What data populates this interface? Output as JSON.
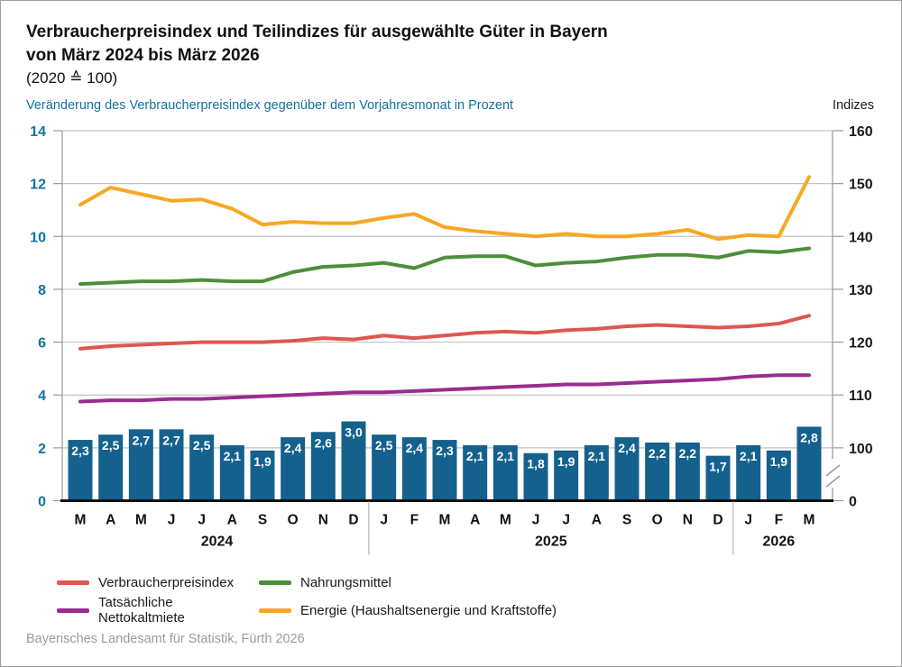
{
  "title": {
    "line1": "Verbraucherpreisindex und Teilindizes für ausgewählte Güter in Bayern",
    "line2": "von März 2024 bis März 2026",
    "line3": "(2020 ≙ 100)"
  },
  "subtitle_left": "Veränderung des Verbraucherpreisindex gegenüber dem Vorjahresmonat in Prozent",
  "subtitle_right": "Indizes",
  "footer": "Bayerisches Landesamt für Statistik, Fürth 2026",
  "colors": {
    "bar": "#14618e",
    "vpi_red": "#dd5750",
    "nahrungsmittel_green": "#4e8e3a",
    "miete_purple": "#9a2c90",
    "energie_orange": "#f6a823",
    "axis_text_blue": "#1272a3",
    "gridline": "#c3c3c3",
    "axis_line": "#9a9a9a",
    "bottom_axis": "#111111"
  },
  "chart_data": {
    "type": "bar",
    "subtype": "combo bar + 4 line series",
    "title": "Verbraucherpreisindex und Teilindizes für ausgewählte Güter in Bayern von März 2024 bis März 2026 (2020 ≙ 100)",
    "categories": [
      "M",
      "A",
      "M",
      "J",
      "J",
      "A",
      "S",
      "O",
      "N",
      "D",
      "J",
      "F",
      "M",
      "A",
      "M",
      "J",
      "J",
      "A",
      "S",
      "O",
      "N",
      "D",
      "J",
      "F",
      "M"
    ],
    "year_groups": [
      {
        "label": "2024",
        "start": 0,
        "end": 9
      },
      {
        "label": "2025",
        "start": 10,
        "end": 21
      },
      {
        "label": "2026",
        "start": 22,
        "end": 24
      }
    ],
    "bars": {
      "name": "Veränderung des Verbraucherpreisindex gegenüber dem Vorjahresmonat in Prozent",
      "values": [
        2.3,
        2.5,
        2.7,
        2.7,
        2.5,
        2.1,
        1.9,
        2.4,
        2.6,
        3.0,
        2.5,
        2.4,
        2.3,
        2.1,
        2.1,
        1.8,
        1.9,
        2.1,
        2.4,
        2.2,
        2.2,
        1.7,
        2.1,
        1.9,
        2.8
      ],
      "labels": [
        "2,3",
        "2,5",
        "2,7",
        "2,7",
        "2,5",
        "2,1",
        "1,9",
        "2,4",
        "2,6",
        "3,0",
        "2,5",
        "2,4",
        "2,3",
        "2,1",
        "2,1",
        "1,8",
        "1,9",
        "2,1",
        "2,4",
        "2,2",
        "2,2",
        "1,7",
        "2,1",
        "1,9",
        "2,8"
      ]
    },
    "series": [
      {
        "name": "Verbraucherpreisindex",
        "color_key": "vpi_red",
        "values": [
          5.75,
          5.85,
          5.9,
          5.95,
          6.0,
          6.0,
          6.0,
          6.05,
          6.15,
          6.1,
          6.25,
          6.15,
          6.25,
          6.35,
          6.4,
          6.35,
          6.45,
          6.5,
          6.6,
          6.65,
          6.6,
          6.55,
          6.6,
          6.7,
          7.0
        ]
      },
      {
        "name": "Nahrungsmittel",
        "color_key": "nahrungsmittel_green",
        "values": [
          8.2,
          8.25,
          8.3,
          8.3,
          8.35,
          8.3,
          8.3,
          8.65,
          8.85,
          8.9,
          9.0,
          8.8,
          9.2,
          9.25,
          9.25,
          8.9,
          9.0,
          9.05,
          9.2,
          9.3,
          9.3,
          9.2,
          9.45,
          9.4,
          9.55
        ]
      },
      {
        "name": "Tatsächliche Nettokaltmiete",
        "color_key": "miete_purple",
        "values": [
          3.75,
          3.8,
          3.8,
          3.85,
          3.85,
          3.9,
          3.95,
          4.0,
          4.05,
          4.1,
          4.1,
          4.15,
          4.2,
          4.25,
          4.3,
          4.35,
          4.4,
          4.4,
          4.45,
          4.5,
          4.55,
          4.6,
          4.7,
          4.75,
          4.75
        ]
      },
      {
        "name": "Energie (Haushaltsenergie und Kraftstoffe)",
        "color_key": "energie_orange",
        "values": [
          11.2,
          11.85,
          11.6,
          11.35,
          11.4,
          11.05,
          10.45,
          10.55,
          10.5,
          10.5,
          10.7,
          10.85,
          10.35,
          10.2,
          10.1,
          10.0,
          10.1,
          10.0,
          10.0,
          10.1,
          10.25,
          9.9,
          10.05,
          10.0,
          12.25
        ]
      }
    ],
    "series_axis_note": "Line series are read on the right Indizes axis; index value = 100 + 5 × (left-axis value − 2). Bars are read on the left percent axis.",
    "left_axis": {
      "label": "Prozent",
      "min": 0,
      "max": 14,
      "ticks": [
        0,
        2,
        4,
        6,
        8,
        10,
        12,
        14
      ],
      "grid": true
    },
    "right_axis": {
      "label": "Indizes",
      "tick_values": [
        0,
        2,
        4,
        6,
        8,
        10,
        12,
        14
      ],
      "tick_labels": [
        "0",
        "100",
        "110",
        "120",
        "130",
        "140",
        "150",
        "160"
      ],
      "axis_break_between": [
        "0",
        "100"
      ]
    },
    "legend_position": "bottom"
  },
  "legend": {
    "items": [
      {
        "label": "Verbraucherpreisindex",
        "color_key": "vpi_red"
      },
      {
        "label": "Nahrungsmittel",
        "color_key": "nahrungsmittel_green"
      },
      {
        "label": "Tatsächliche Nettokaltmiete",
        "color_key": "miete_purple"
      },
      {
        "label": "Energie (Haushaltsenergie und Kraftstoffe)",
        "color_key": "energie_orange"
      }
    ]
  }
}
